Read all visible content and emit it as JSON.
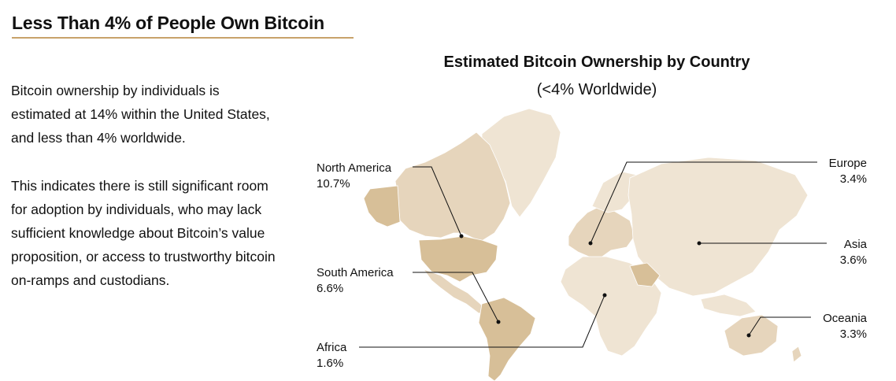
{
  "heading": "Less Than 4% of People Own Bitcoin",
  "paragraphs": [
    "Bitcoin ownership by individuals is estimated at 14% within the United States, and less than 4% worldwide.",
    "This indicates there is still significant room for adoption by individuals, who may lack sufficient knowledge about Bitcoin’s value proposition, or access to trustworthy bitcoin on-ramps and custodians."
  ],
  "colors": {
    "accent_rule": "#c8a26a",
    "map_light": "#efe4d3",
    "map_mid": "#e6d5bc",
    "map_dark": "#d7bf98",
    "leader_line": "#111111"
  },
  "chart_data": {
    "type": "choropleth-map",
    "title": "Estimated Bitcoin Ownership by Country",
    "subtitle": "(<4% Worldwide)",
    "unit": "%",
    "regions": [
      {
        "name": "North America",
        "value": 10.7,
        "label": "10.7%"
      },
      {
        "name": "South America",
        "value": 6.6,
        "label": "6.6%"
      },
      {
        "name": "Africa",
        "value": 1.6,
        "label": "1.6%"
      },
      {
        "name": "Europe",
        "value": 3.4,
        "label": "3.4%"
      },
      {
        "name": "Asia",
        "value": 3.6,
        "label": "3.6%"
      },
      {
        "name": "Oceania",
        "value": 3.3,
        "label": "3.3%"
      }
    ]
  }
}
